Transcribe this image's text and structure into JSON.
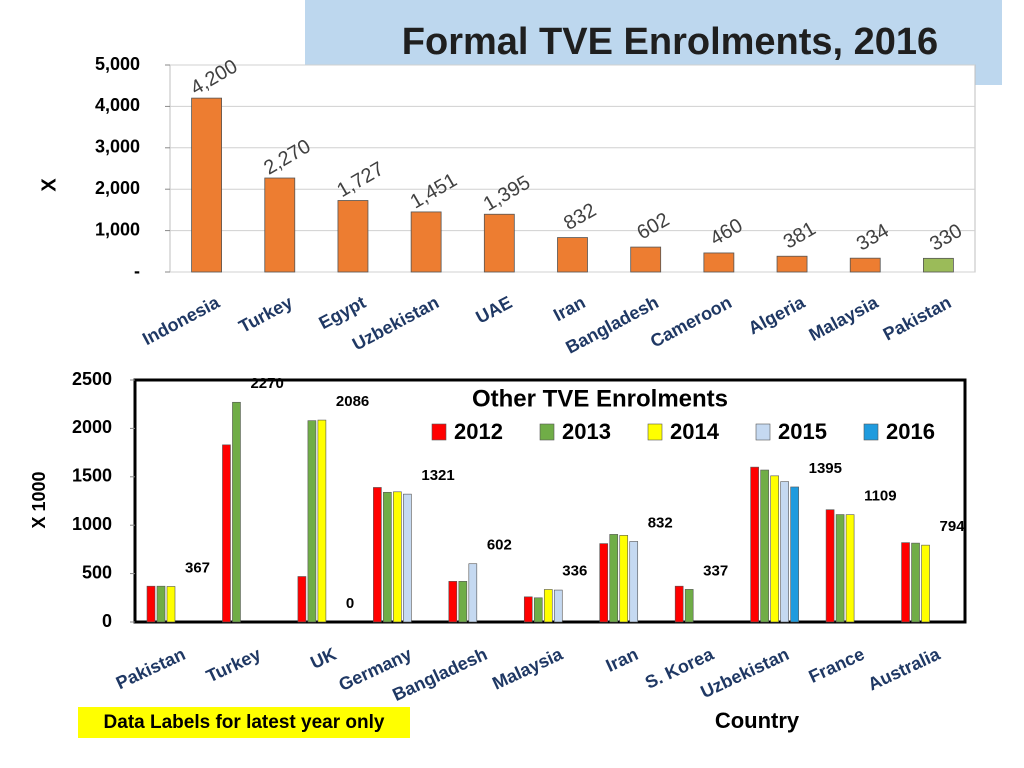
{
  "chart_data": [
    {
      "type": "bar",
      "title": "Formal TVE Enrolments, 2016",
      "y_label": "X",
      "categories": [
        "Indonesia",
        "Turkey",
        "Egypt",
        "Uzbekistan",
        "UAE",
        "Iran",
        "Bangladesh",
        "Cameroon",
        "Algeria",
        "Malaysia",
        "Pakistan"
      ],
      "values": [
        4200,
        2270,
        1727,
        1451,
        1395,
        832,
        602,
        460,
        381,
        334,
        330
      ],
      "value_labels": [
        "4,200",
        "2,270",
        "1,727",
        "1,451",
        "1,395",
        "832",
        "602",
        "460",
        "381",
        "334",
        "330"
      ],
      "colors": [
        "#ed7d31",
        "#ed7d31",
        "#ed7d31",
        "#ed7d31",
        "#ed7d31",
        "#ed7d31",
        "#ed7d31",
        "#ed7d31",
        "#ed7d31",
        "#ed7d31",
        "#9bbb59"
      ],
      "ylim": [
        0,
        5000
      ],
      "yticks": [
        {
          "value": 0,
          "label": "-"
        },
        {
          "value": 1000,
          "label": "1,000"
        },
        {
          "value": 2000,
          "label": "2,000"
        },
        {
          "value": 3000,
          "label": "3,000"
        },
        {
          "value": 4000,
          "label": "4,000"
        },
        {
          "value": 5000,
          "label": "5,000"
        }
      ],
      "grid": true
    },
    {
      "type": "grouped_bar",
      "title": "Other TVE Enrolments",
      "y_label": "X 1000",
      "x_label": "Country",
      "annotation": "Data Labels for latest year only",
      "categories": [
        "Pakistan",
        "Turkey",
        "UK",
        "Germany",
        "Bangladesh",
        "Malaysia",
        "Iran",
        "S. Korea",
        "Uzbekistan",
        "France",
        "Australia"
      ],
      "series": [
        {
          "name": "2012",
          "color": "#ff0000",
          "values": [
            370,
            1830,
            470,
            1390,
            420,
            260,
            810,
            370,
            1600,
            1160,
            820
          ]
        },
        {
          "name": "2013",
          "color": "#70ad47",
          "values": [
            370,
            2270,
            2080,
            1340,
            420,
            250,
            905,
            337,
            1570,
            1110,
            815
          ],
          "value_labels": [
            null,
            "2270",
            null,
            null,
            null,
            null,
            null,
            "337",
            null,
            null,
            null
          ]
        },
        {
          "name": "2014",
          "color": "#ffff00",
          "values": [
            367,
            null,
            2086,
            1345,
            null,
            336,
            895,
            null,
            1510,
            1109,
            794
          ],
          "value_labels": [
            "367",
            null,
            "2086",
            null,
            null,
            "336",
            null,
            null,
            null,
            "1109",
            "794"
          ]
        },
        {
          "name": "2015",
          "color": "#c5d9f1",
          "values": [
            null,
            null,
            0,
            1321,
            602,
            330,
            832,
            null,
            1450,
            null,
            null
          ],
          "value_labels": [
            null,
            null,
            "0",
            "1321",
            "602",
            null,
            "832",
            null,
            null,
            null,
            null
          ]
        },
        {
          "name": "2016",
          "color": "#1f9bde",
          "values": [
            null,
            null,
            null,
            null,
            null,
            null,
            null,
            null,
            1395,
            null,
            null
          ],
          "value_labels": [
            null,
            null,
            null,
            null,
            null,
            null,
            null,
            null,
            "1395",
            null,
            null
          ]
        }
      ],
      "ylim": [
        0,
        2500
      ],
      "yticks": [
        0,
        500,
        1000,
        1500,
        2000,
        2500
      ],
      "grid": false
    }
  ]
}
